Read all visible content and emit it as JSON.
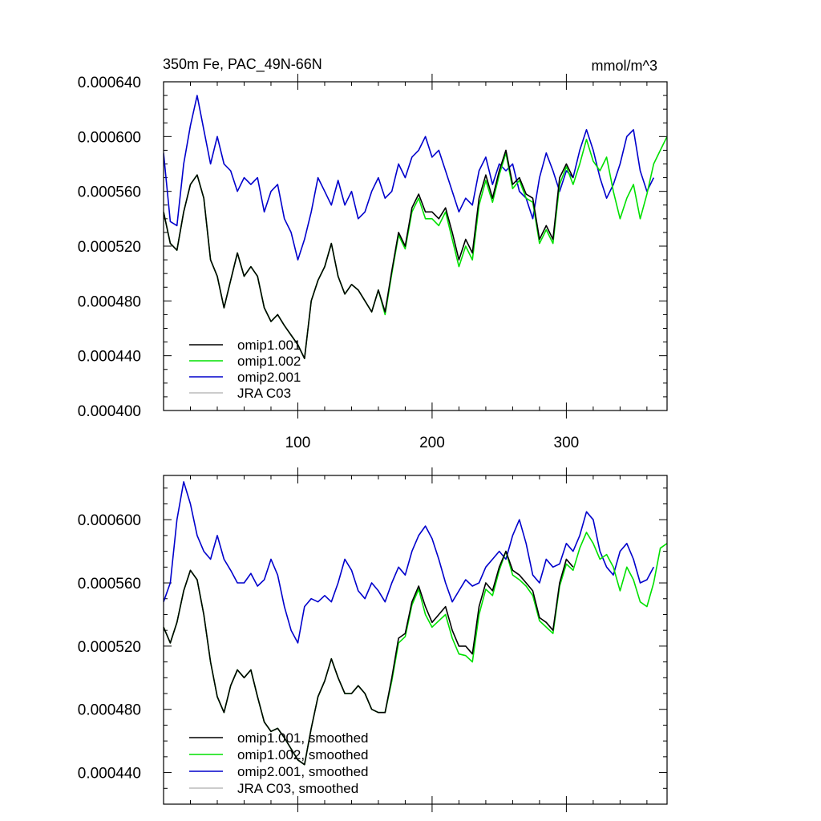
{
  "chart_data": [
    {
      "type": "line",
      "title": "350m Fe, PAC_49N-66N",
      "units": "mmol/m^3",
      "xlim": [
        0,
        375
      ],
      "ylim": [
        0.0004,
        0.00064
      ],
      "xticks": [
        100,
        200,
        300
      ],
      "xtick_labels": [
        "100",
        "200",
        "300"
      ],
      "yticks": [
        0.0004,
        0.00044,
        0.00048,
        0.00052,
        0.00056,
        0.0006,
        0.00064
      ],
      "ytick_labels": [
        "0.000400",
        "0.000440",
        "0.000480",
        "0.000520",
        "0.000560",
        "0.000600",
        "0.000640"
      ],
      "legend_position": "bottom-left",
      "series": [
        {
          "name": "omip1.001",
          "color": "#000000",
          "x": [
            0,
            5,
            10,
            15,
            20,
            25,
            30,
            35,
            40,
            45,
            50,
            55,
            60,
            65,
            70,
            75,
            80,
            85,
            90,
            95,
            100,
            105,
            110,
            115,
            120,
            125,
            130,
            135,
            140,
            145,
            150,
            155,
            160,
            165,
            170,
            175,
            180,
            185,
            190,
            195,
            200,
            205,
            210,
            215,
            220,
            225,
            230,
            235,
            240,
            245,
            250,
            255,
            260,
            265,
            270,
            275,
            280,
            285,
            290,
            295,
            300,
            305
          ],
          "y": [
            0.000545,
            0.000522,
            0.000517,
            0.000545,
            0.000565,
            0.000572,
            0.000555,
            0.00051,
            0.000498,
            0.000475,
            0.000495,
            0.000515,
            0.000498,
            0.000505,
            0.000498,
            0.000475,
            0.000465,
            0.00047,
            0.000462,
            0.000455,
            0.000448,
            0.000438,
            0.00048,
            0.000495,
            0.000505,
            0.000522,
            0.000498,
            0.000485,
            0.000492,
            0.000488,
            0.00048,
            0.000472,
            0.000488,
            0.000472,
            0.000502,
            0.00053,
            0.00052,
            0.000548,
            0.000558,
            0.000545,
            0.000545,
            0.00054,
            0.000548,
            0.00053,
            0.00051,
            0.000525,
            0.000515,
            0.000555,
            0.000572,
            0.000555,
            0.000575,
            0.00059,
            0.000565,
            0.00057,
            0.000558,
            0.000555,
            0.000525,
            0.000535,
            0.000525,
            0.00057,
            0.00058,
            0.00057
          ]
        },
        {
          "name": "omip1.002",
          "color": "#00e000",
          "x": [
            0,
            5,
            10,
            15,
            20,
            25,
            30,
            35,
            40,
            45,
            50,
            55,
            60,
            65,
            70,
            75,
            80,
            85,
            90,
            95,
            100,
            105,
            110,
            115,
            120,
            125,
            130,
            135,
            140,
            145,
            150,
            155,
            160,
            165,
            170,
            175,
            180,
            185,
            190,
            195,
            200,
            205,
            210,
            215,
            220,
            225,
            230,
            235,
            240,
            245,
            250,
            255,
            260,
            265,
            270,
            275,
            280,
            285,
            290,
            295,
            300,
            305,
            310,
            315,
            320,
            325,
            330,
            335,
            340,
            345,
            350,
            355,
            360,
            365,
            370,
            375
          ],
          "y": [
            0.000545,
            0.000522,
            0.000517,
            0.000545,
            0.000565,
            0.000572,
            0.000555,
            0.00051,
            0.000498,
            0.000475,
            0.000495,
            0.000515,
            0.000498,
            0.000505,
            0.000498,
            0.000475,
            0.000465,
            0.00047,
            0.000462,
            0.000455,
            0.000448,
            0.000438,
            0.00048,
            0.000495,
            0.000505,
            0.000522,
            0.000498,
            0.000485,
            0.000492,
            0.000488,
            0.00048,
            0.000472,
            0.000488,
            0.00047,
            0.0005,
            0.000528,
            0.000518,
            0.000545,
            0.000555,
            0.00054,
            0.00054,
            0.000535,
            0.000545,
            0.000525,
            0.000505,
            0.00052,
            0.00051,
            0.00055,
            0.000568,
            0.000552,
            0.000572,
            0.000588,
            0.000562,
            0.000568,
            0.000555,
            0.000552,
            0.000522,
            0.000532,
            0.000522,
            0.000565,
            0.000578,
            0.000565,
            0.00058,
            0.000598,
            0.000582,
            0.000575,
            0.000585,
            0.00056,
            0.00054,
            0.000555,
            0.000565,
            0.00054,
            0.000558,
            0.00058,
            0.00059,
            0.0006
          ]
        },
        {
          "name": "omip2.001",
          "color": "#0000cc",
          "x": [
            0,
            5,
            10,
            15,
            20,
            25,
            30,
            35,
            40,
            45,
            50,
            55,
            60,
            65,
            70,
            75,
            80,
            85,
            90,
            95,
            100,
            105,
            110,
            115,
            120,
            125,
            130,
            135,
            140,
            145,
            150,
            155,
            160,
            165,
            170,
            175,
            180,
            185,
            190,
            195,
            200,
            205,
            210,
            215,
            220,
            225,
            230,
            235,
            240,
            245,
            250,
            255,
            260,
            265,
            270,
            275,
            280,
            285,
            290,
            295,
            300,
            305,
            310,
            315,
            320,
            325,
            330,
            335,
            340,
            345,
            350,
            355,
            360,
            365
          ],
          "y": [
            0.000588,
            0.000538,
            0.000535,
            0.00058,
            0.000608,
            0.00063,
            0.000605,
            0.00058,
            0.0006,
            0.00058,
            0.000575,
            0.00056,
            0.00057,
            0.000565,
            0.00057,
            0.000545,
            0.00056,
            0.000565,
            0.00054,
            0.00053,
            0.00051,
            0.000525,
            0.000545,
            0.00057,
            0.00056,
            0.00055,
            0.000568,
            0.00055,
            0.00056,
            0.00054,
            0.000545,
            0.00056,
            0.00057,
            0.000555,
            0.00056,
            0.00058,
            0.00057,
            0.000585,
            0.00059,
            0.0006,
            0.000585,
            0.00059,
            0.000575,
            0.00056,
            0.000545,
            0.000555,
            0.00055,
            0.000575,
            0.000585,
            0.000565,
            0.00058,
            0.000575,
            0.00058,
            0.00056,
            0.000555,
            0.00054,
            0.00057,
            0.000588,
            0.000575,
            0.00056,
            0.000575,
            0.00057,
            0.00059,
            0.000605,
            0.00059,
            0.00057,
            0.000555,
            0.000565,
            0.00058,
            0.0006,
            0.000605,
            0.000575,
            0.00056,
            0.00057
          ]
        },
        {
          "name": "JRA C03",
          "color": "#bbbbbb",
          "x": [],
          "y": []
        }
      ]
    },
    {
      "type": "line",
      "title": "",
      "xlim": [
        0,
        375
      ],
      "ylim": [
        0.00042,
        0.000628
      ],
      "xticks": [
        100,
        200,
        300
      ],
      "yticks": [
        0.00044,
        0.00048,
        0.00052,
        0.00056,
        0.0006
      ],
      "ytick_labels": [
        "0.000440",
        "0.000480",
        "0.000520",
        "0.000560",
        "0.000600"
      ],
      "legend_position": "bottom-left",
      "series": [
        {
          "name": "omip1.001, smoothed",
          "color": "#000000",
          "x": [
            0,
            5,
            10,
            15,
            20,
            25,
            30,
            35,
            40,
            45,
            50,
            55,
            60,
            65,
            70,
            75,
            80,
            85,
            90,
            95,
            100,
            105,
            110,
            115,
            120,
            125,
            130,
            135,
            140,
            145,
            150,
            155,
            160,
            165,
            170,
            175,
            180,
            185,
            190,
            195,
            200,
            205,
            210,
            215,
            220,
            225,
            230,
            235,
            240,
            245,
            250,
            255,
            260,
            265,
            270,
            275,
            280,
            285,
            290,
            295,
            300,
            305
          ],
          "y": [
            0.000532,
            0.000522,
            0.000535,
            0.000555,
            0.000568,
            0.000562,
            0.00054,
            0.00051,
            0.000488,
            0.000478,
            0.000495,
            0.000505,
            0.0005,
            0.000505,
            0.000488,
            0.000472,
            0.000466,
            0.000468,
            0.000462,
            0.000455,
            0.000448,
            0.000445,
            0.000468,
            0.000488,
            0.000498,
            0.000512,
            0.0005,
            0.00049,
            0.00049,
            0.000495,
            0.00049,
            0.00048,
            0.000478,
            0.000478,
            0.0005,
            0.000525,
            0.000528,
            0.000548,
            0.000558,
            0.000545,
            0.000535,
            0.00054,
            0.000545,
            0.00053,
            0.00052,
            0.00052,
            0.000515,
            0.000545,
            0.00056,
            0.000555,
            0.00057,
            0.00058,
            0.000568,
            0.000565,
            0.00056,
            0.000555,
            0.000538,
            0.000535,
            0.00053,
            0.00056,
            0.000575,
            0.00057
          ]
        },
        {
          "name": "omip1.002, smoothed",
          "color": "#00e000",
          "x": [
            0,
            5,
            10,
            15,
            20,
            25,
            30,
            35,
            40,
            45,
            50,
            55,
            60,
            65,
            70,
            75,
            80,
            85,
            90,
            95,
            100,
            105,
            110,
            115,
            120,
            125,
            130,
            135,
            140,
            145,
            150,
            155,
            160,
            165,
            170,
            175,
            180,
            185,
            190,
            195,
            200,
            205,
            210,
            215,
            220,
            225,
            230,
            235,
            240,
            245,
            250,
            255,
            260,
            265,
            270,
            275,
            280,
            285,
            290,
            295,
            300,
            305,
            310,
            315,
            320,
            325,
            330,
            335,
            340,
            345,
            350,
            355,
            360,
            365,
            370,
            375
          ],
          "y": [
            0.000532,
            0.000522,
            0.000535,
            0.000555,
            0.000568,
            0.000562,
            0.00054,
            0.00051,
            0.000488,
            0.000478,
            0.000495,
            0.000505,
            0.0005,
            0.000505,
            0.000488,
            0.000472,
            0.000466,
            0.000468,
            0.000462,
            0.000455,
            0.000448,
            0.000445,
            0.000468,
            0.000488,
            0.000498,
            0.000512,
            0.0005,
            0.00049,
            0.00049,
            0.000495,
            0.00049,
            0.00048,
            0.000478,
            0.000478,
            0.000498,
            0.000522,
            0.000526,
            0.000546,
            0.000556,
            0.00054,
            0.000532,
            0.000536,
            0.00054,
            0.000525,
            0.000515,
            0.000514,
            0.00051,
            0.00054,
            0.000556,
            0.000552,
            0.000568,
            0.00058,
            0.000565,
            0.000562,
            0.000558,
            0.000552,
            0.000536,
            0.000532,
            0.000528,
            0.000558,
            0.000572,
            0.000568,
            0.000582,
            0.000592,
            0.000585,
            0.000575,
            0.000578,
            0.00057,
            0.000555,
            0.00057,
            0.000562,
            0.000548,
            0.000545,
            0.00056,
            0.000582,
            0.000585
          ]
        },
        {
          "name": "omip2.001, smoothed",
          "color": "#0000cc",
          "x": [
            0,
            5,
            10,
            15,
            20,
            25,
            30,
            35,
            40,
            45,
            50,
            55,
            60,
            65,
            70,
            75,
            80,
            85,
            90,
            95,
            100,
            105,
            110,
            115,
            120,
            125,
            130,
            135,
            140,
            145,
            150,
            155,
            160,
            165,
            170,
            175,
            180,
            185,
            190,
            195,
            200,
            205,
            210,
            215,
            220,
            225,
            230,
            235,
            240,
            245,
            250,
            255,
            260,
            265,
            270,
            275,
            280,
            285,
            290,
            295,
            300,
            305,
            310,
            315,
            320,
            325,
            330,
            335,
            340,
            345,
            350,
            355,
            360,
            365
          ],
          "y": [
            0.000548,
            0.00056,
            0.0006,
            0.000624,
            0.00061,
            0.00059,
            0.00058,
            0.000575,
            0.00059,
            0.000575,
            0.000568,
            0.00056,
            0.00056,
            0.000566,
            0.000558,
            0.000562,
            0.000575,
            0.000565,
            0.000545,
            0.00053,
            0.000522,
            0.000545,
            0.00055,
            0.000548,
            0.000552,
            0.000548,
            0.00056,
            0.000575,
            0.000568,
            0.000555,
            0.00055,
            0.00056,
            0.000555,
            0.000548,
            0.00056,
            0.00057,
            0.000565,
            0.00058,
            0.00059,
            0.000596,
            0.000588,
            0.000575,
            0.00056,
            0.000548,
            0.000555,
            0.000562,
            0.000558,
            0.00056,
            0.00057,
            0.000575,
            0.00058,
            0.000575,
            0.00059,
            0.0006,
            0.000585,
            0.000565,
            0.00056,
            0.000575,
            0.00057,
            0.000572,
            0.000585,
            0.00058,
            0.00059,
            0.000605,
            0.0006,
            0.00058,
            0.00057,
            0.000565,
            0.00058,
            0.000585,
            0.000575,
            0.00056,
            0.000562,
            0.00057
          ]
        },
        {
          "name": "JRA C03, smoothed",
          "color": "#bbbbbb",
          "x": [],
          "y": []
        }
      ]
    }
  ]
}
